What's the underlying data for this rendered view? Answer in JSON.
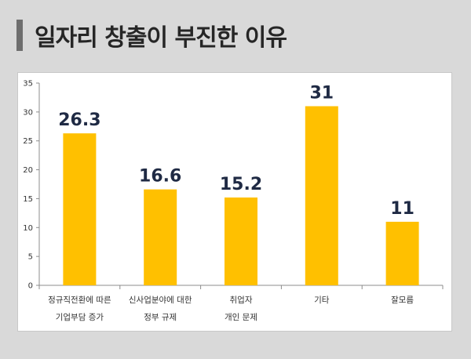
{
  "title": "일자리 창출이 부진한 이유",
  "colors": {
    "bar": "#ffc000",
    "label": "#1f2a44"
  },
  "chart_data": {
    "type": "bar",
    "title": "",
    "xlabel": "",
    "ylabel": "",
    "ylim": [
      0,
      35
    ],
    "yticks": [
      0,
      5,
      10,
      15,
      20,
      25,
      30,
      35
    ],
    "grid": false,
    "categories": [
      [
        "정규직전환에 따른",
        "기업부담 증가"
      ],
      [
        "신사업분야에 대한",
        "정부 규제"
      ],
      [
        "취업자",
        "개인 문제"
      ],
      [
        "기타"
      ],
      [
        "잘모름"
      ]
    ],
    "values": [
      26.3,
      16.6,
      15.2,
      31,
      11
    ],
    "data_labels": [
      "26.3",
      "16.6",
      "15.2",
      "31",
      "11"
    ]
  }
}
